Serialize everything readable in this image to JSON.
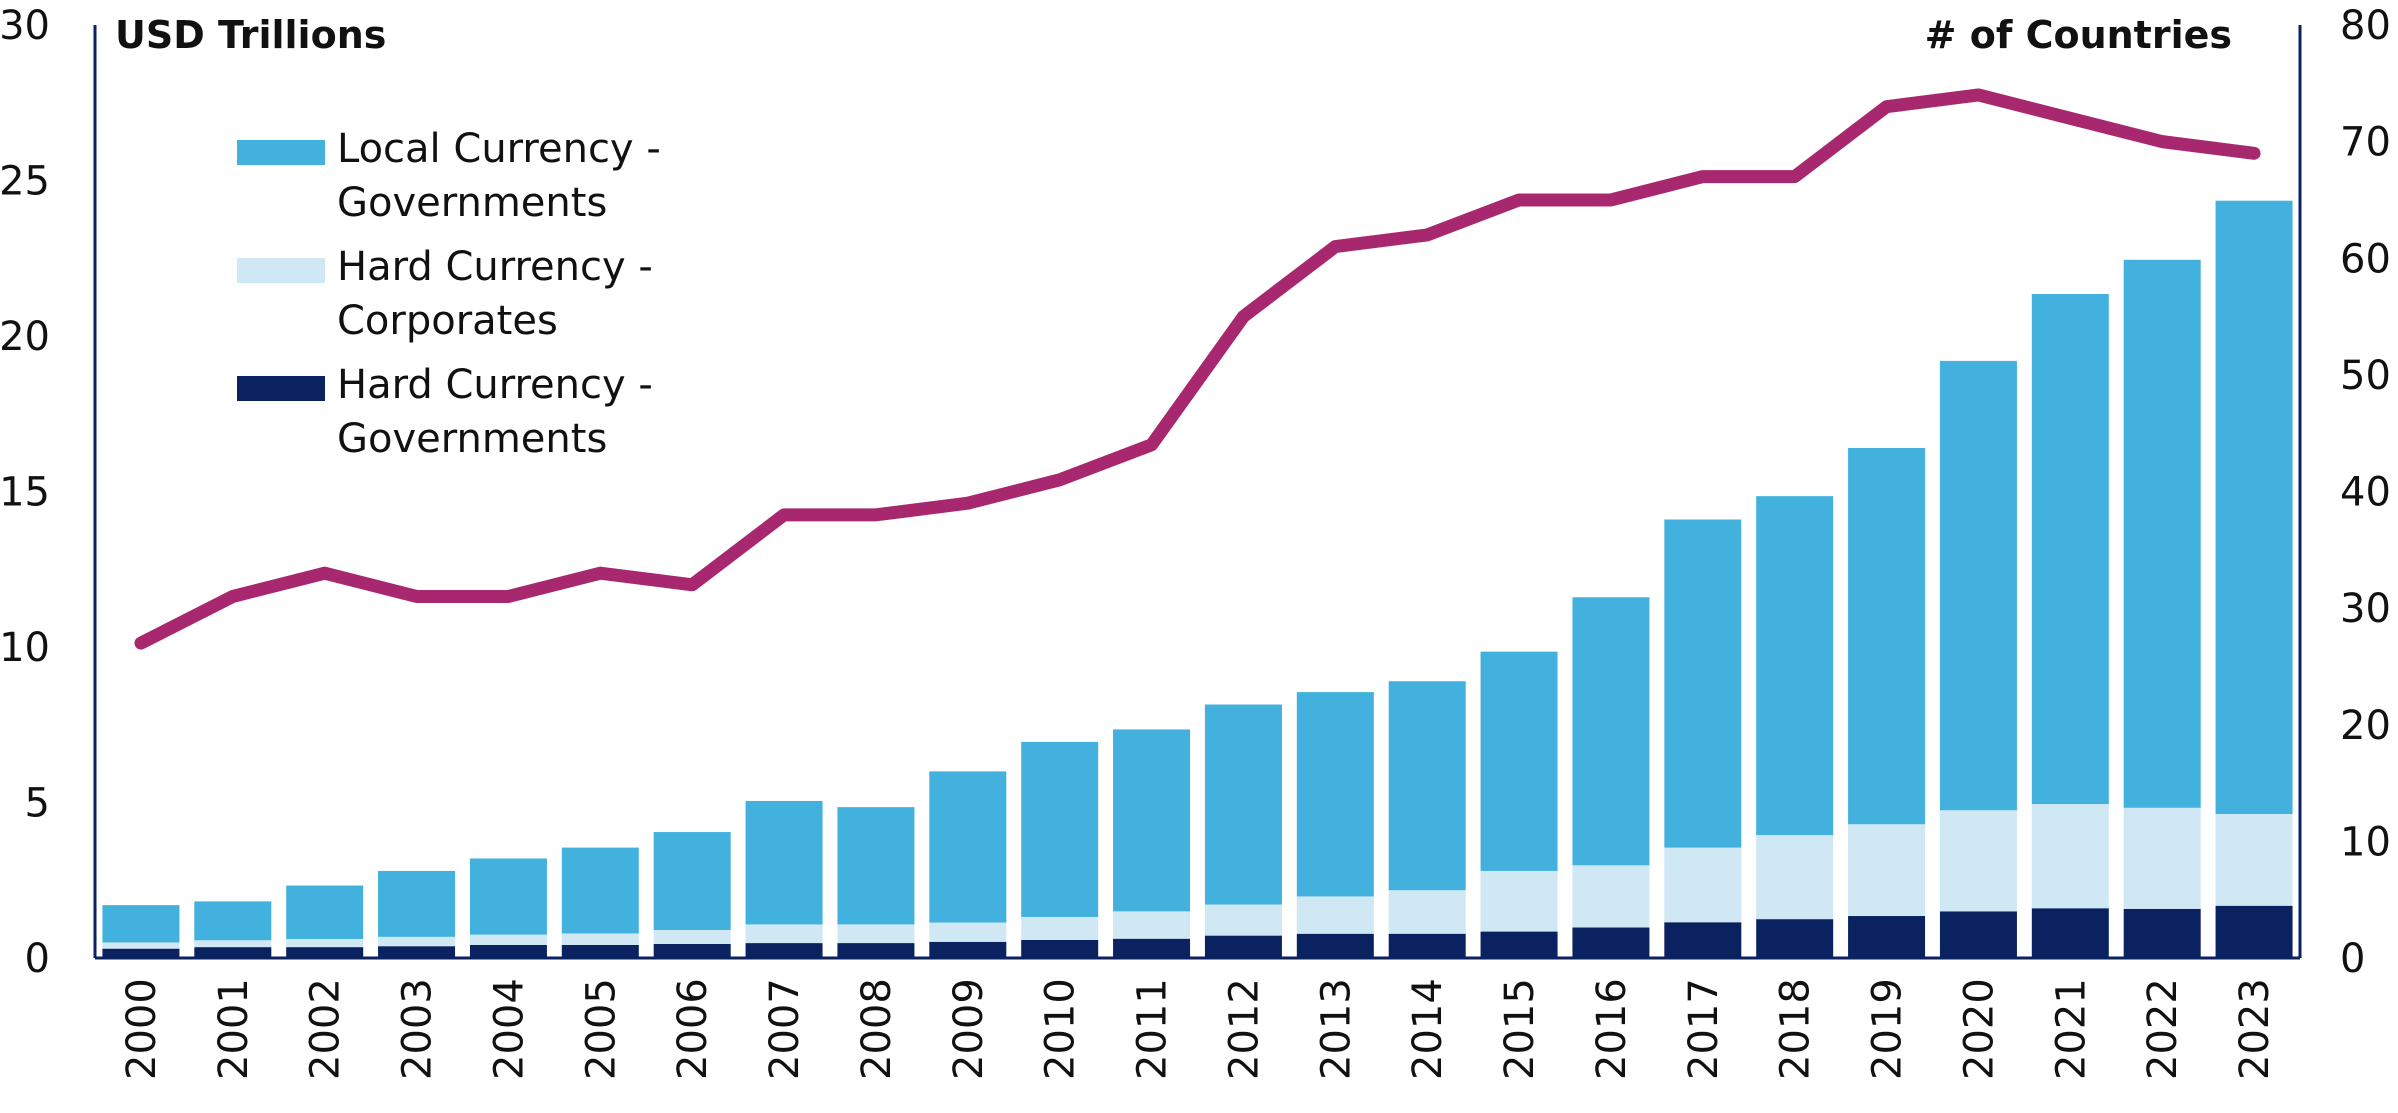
{
  "chart_data": {
    "type": "bar",
    "stacked": true,
    "categories": [
      "2000",
      "2001",
      "2002",
      "2003",
      "2004",
      "2005",
      "2006",
      "2007",
      "2008",
      "2009",
      "2010",
      "2011",
      "2012",
      "2013",
      "2014",
      "2015",
      "2016",
      "2017",
      "2018",
      "2019",
      "2020",
      "2021",
      "2022",
      "2023"
    ],
    "y_left": {
      "label": "USD Trillions",
      "ylim": [
        0,
        30
      ],
      "ticks": [
        "0",
        "5",
        "10",
        "15",
        "20",
        "25",
        "30"
      ]
    },
    "y_right": {
      "label": "# of Countries",
      "ylim": [
        0,
        80
      ],
      "ticks": [
        "0",
        "10",
        "20",
        "30",
        "40",
        "50",
        "60",
        "70",
        "80"
      ]
    },
    "series": [
      {
        "name": "Hard Currency - Governments",
        "color": "#0b2260",
        "axis": "left",
        "values": [
          0.3,
          0.35,
          0.35,
          0.38,
          0.42,
          0.42,
          0.45,
          0.48,
          0.48,
          0.52,
          0.58,
          0.62,
          0.72,
          0.78,
          0.78,
          0.85,
          0.98,
          1.15,
          1.25,
          1.35,
          1.5,
          1.6,
          1.58,
          1.68
        ]
      },
      {
        "name": "Hard Currency - Corporates",
        "color": "#cfe8f4",
        "axis": "left",
        "values": [
          0.2,
          0.22,
          0.26,
          0.3,
          0.33,
          0.37,
          0.45,
          0.6,
          0.6,
          0.62,
          0.74,
          0.88,
          1.0,
          1.2,
          1.4,
          1.95,
          2.0,
          2.4,
          2.7,
          2.95,
          3.25,
          3.35,
          3.25,
          2.95
        ]
      },
      {
        "name": "Local Currency - Governments",
        "color": "#42b1dd",
        "axis": "left",
        "values": [
          1.2,
          1.25,
          1.72,
          2.12,
          2.45,
          2.76,
          3.15,
          3.97,
          3.77,
          4.86,
          5.63,
          5.85,
          6.43,
          6.57,
          6.72,
          7.05,
          8.62,
          10.55,
          10.9,
          12.1,
          14.45,
          16.4,
          17.62,
          19.72
        ]
      },
      {
        "name": "",
        "type": "line",
        "color": "#a8286f",
        "axis": "right",
        "values": [
          27,
          31,
          33,
          31,
          31,
          33,
          32,
          38,
          38,
          39,
          41,
          44,
          55,
          61,
          62,
          65,
          65,
          67,
          67,
          73,
          74,
          72,
          70,
          69
        ]
      }
    ],
    "legend": {
      "placement": "top-left",
      "entries": [
        {
          "line1": "Local Currency -",
          "line2": "Governments",
          "color": "#42b1dd"
        },
        {
          "line1": "Hard Currency -",
          "line2": "Corporates",
          "color": "#cfe8f4"
        },
        {
          "line1": "Hard Currency -",
          "line2": "Governments",
          "color": "#0b2260"
        }
      ]
    },
    "grid": false
  }
}
